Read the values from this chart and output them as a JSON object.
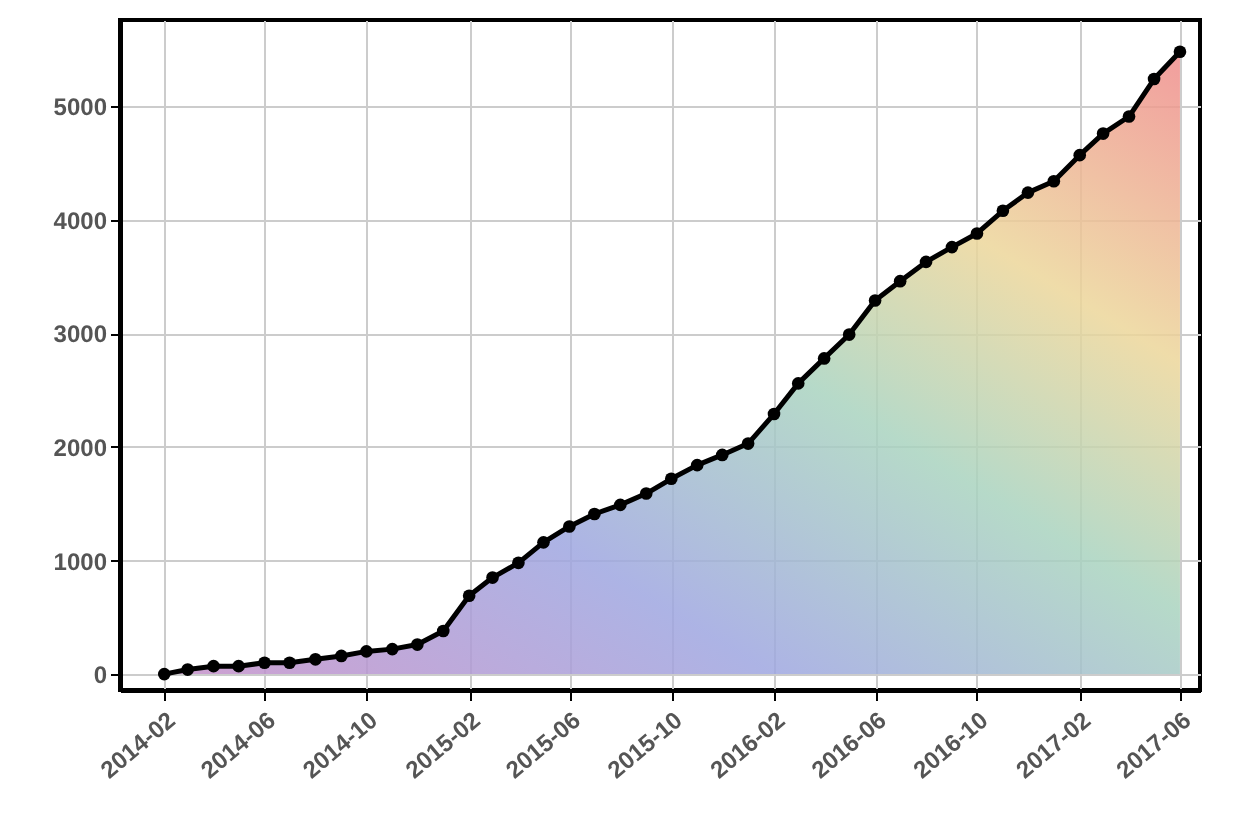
{
  "chart_data": {
    "type": "area",
    "x": [
      "2014-02",
      "2014-03",
      "2014-04",
      "2014-05",
      "2014-06",
      "2014-07",
      "2014-08",
      "2014-09",
      "2014-10",
      "2014-11",
      "2014-12",
      "2015-01",
      "2015-02",
      "2015-03",
      "2015-04",
      "2015-05",
      "2015-06",
      "2015-07",
      "2015-08",
      "2015-09",
      "2015-10",
      "2015-11",
      "2015-12",
      "2016-01",
      "2016-02",
      "2016-03",
      "2016-04",
      "2016-05",
      "2016-06",
      "2016-07",
      "2016-08",
      "2016-09",
      "2016-10",
      "2016-11",
      "2016-12",
      "2017-01",
      "2017-02",
      "2017-03",
      "2017-04",
      "2017-05",
      "2017-06"
    ],
    "series": [
      {
        "color": "#000000",
        "values": [
          0,
          40,
          70,
          70,
          100,
          100,
          130,
          160,
          200,
          220,
          260,
          380,
          690,
          850,
          980,
          1160,
          1300,
          1410,
          1490,
          1590,
          1720,
          1840,
          1930,
          2030,
          2290,
          2560,
          2780,
          2990,
          3290,
          3460,
          3630,
          3760,
          3880,
          4080,
          4240,
          4340,
          4570,
          4760,
          4910,
          5240,
          5480
        ]
      }
    ],
    "xlim": [
      "2013-12-10",
      "2017-06-25"
    ],
    "xticks": [
      "2014-02",
      "2014-06",
      "2014-10",
      "2015-02",
      "2015-06",
      "2015-10",
      "2016-02",
      "2016-06",
      "2016-10",
      "2017-02",
      "2017-06"
    ],
    "ylim": [
      -140,
      5760
    ],
    "yticks": [
      0,
      1000,
      2000,
      3000,
      4000,
      5000
    ],
    "grid": true,
    "marker": "circle",
    "line_style": "solid"
  }
}
